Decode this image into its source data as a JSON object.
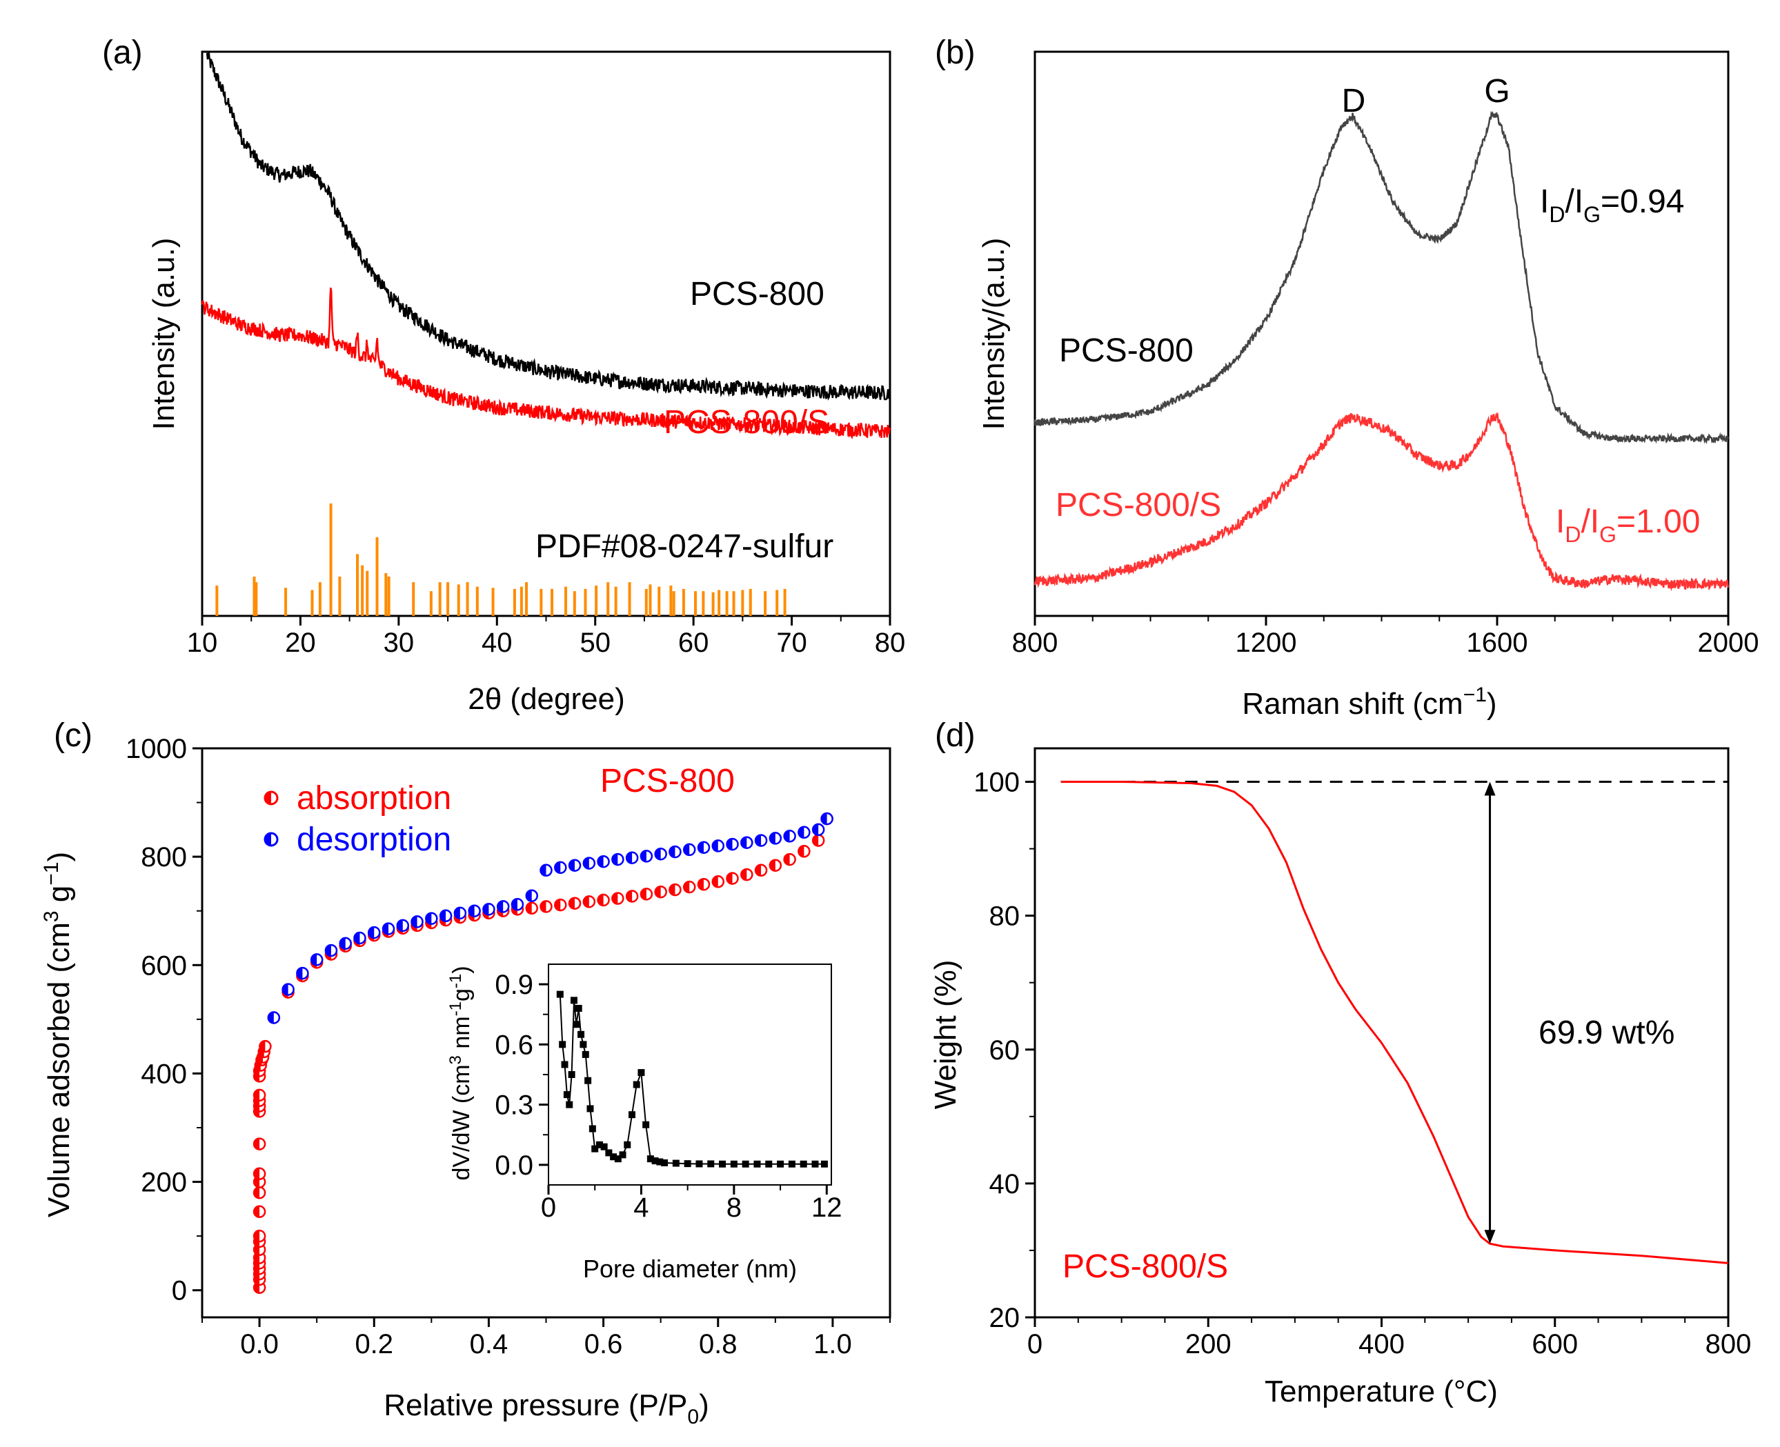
{
  "chart_data": [
    {
      "id": "a",
      "panel_label": "(a)",
      "type": "line",
      "title": "",
      "xlabel": "2θ (degree)",
      "ylabel": "Intensity (a.u.)",
      "xlim": [
        10,
        80
      ],
      "xticks": [
        "10",
        "20",
        "30",
        "40",
        "50",
        "60",
        "70",
        "80"
      ],
      "series": [
        {
          "name": "PCS-800",
          "color": "#000000",
          "x": [
            10.5,
            12,
            14,
            16,
            18,
            20,
            21,
            22,
            23,
            24,
            26,
            28,
            30,
            35,
            40,
            45,
            50,
            55,
            60,
            65,
            70,
            75,
            80
          ],
          "y": [
            1.0,
            0.93,
            0.83,
            0.77,
            0.75,
            0.76,
            0.76,
            0.74,
            0.71,
            0.66,
            0.59,
            0.53,
            0.48,
            0.41,
            0.37,
            0.345,
            0.33,
            0.32,
            0.315,
            0.31,
            0.305,
            0.302,
            0.3
          ]
        },
        {
          "name": "PCS-800/S",
          "color": "#ff0000",
          "x": [
            10,
            12,
            14,
            16,
            18,
            20,
            22,
            24,
            26,
            28,
            30,
            35,
            40,
            45,
            50,
            55,
            60,
            65,
            70,
            75,
            80
          ],
          "y": [
            0.48,
            0.46,
            0.44,
            0.43,
            0.42,
            0.42,
            0.41,
            0.4,
            0.38,
            0.36,
            0.33,
            0.29,
            0.27,
            0.26,
            0.25,
            0.245,
            0.24,
            0.235,
            0.23,
            0.225,
            0.22
          ]
        }
      ],
      "reference": {
        "name": "PDF#08-0247-sulfur",
        "color": "#ff8c00",
        "x": [
          11.5,
          15.3,
          15.5,
          18.5,
          21.2,
          22.0,
          23.1,
          24.0,
          25.8,
          26.3,
          26.8,
          27.8,
          28.7,
          29.0,
          31.5,
          33.3,
          34.2,
          35.0,
          36.1,
          37.0,
          38.0,
          39.6,
          41.8,
          42.5,
          43.0,
          44.5,
          45.6,
          47.0,
          47.9,
          49.0,
          50.1,
          51.3,
          52.1,
          53.5,
          55.2,
          55.6,
          56.5,
          57.7,
          58.0,
          59.0,
          60.2,
          61.0,
          62.0,
          62.6,
          63.4,
          64.1,
          65.0,
          65.8,
          67.3,
          68.5,
          69.3
        ],
        "h": [
          0.27,
          0.35,
          0.3,
          0.25,
          0.23,
          0.3,
          1.0,
          0.35,
          0.55,
          0.45,
          0.4,
          0.7,
          0.38,
          0.35,
          0.3,
          0.22,
          0.3,
          0.3,
          0.28,
          0.3,
          0.26,
          0.25,
          0.24,
          0.26,
          0.3,
          0.24,
          0.24,
          0.26,
          0.22,
          0.24,
          0.27,
          0.3,
          0.26,
          0.3,
          0.24,
          0.28,
          0.26,
          0.27,
          0.22,
          0.24,
          0.22,
          0.22,
          0.21,
          0.23,
          0.22,
          0.22,
          0.23,
          0.24,
          0.22,
          0.23,
          0.24
        ]
      },
      "annotations": [
        "PCS-800",
        "PCS-800/S",
        "PDF#08-0247-sulfur"
      ]
    },
    {
      "id": "b",
      "panel_label": "(b)",
      "type": "line",
      "title": "",
      "xlabel": "Raman shift (cm",
      "xlabel_sup": "−1",
      "xlabel_end": ")",
      "ylabel": "Intensity/(a.u.)",
      "xlim": [
        800,
        2000
      ],
      "xticks": [
        "800",
        "1200",
        "1600",
        "2000"
      ],
      "series": [
        {
          "name": "PCS-800",
          "color": "#444444",
          "x": [
            800,
            900,
            1000,
            1100,
            1150,
            1200,
            1250,
            1300,
            1330,
            1350,
            1380,
            1420,
            1460,
            1500,
            1530,
            1560,
            1590,
            1600,
            1620,
            1640,
            1670,
            1700,
            1750,
            1800,
            1900,
            2000
          ],
          "y": [
            0.33,
            0.335,
            0.35,
            0.4,
            0.45,
            0.52,
            0.63,
            0.8,
            0.88,
            0.9,
            0.84,
            0.74,
            0.68,
            0.67,
            0.7,
            0.8,
            0.9,
            0.9,
            0.84,
            0.68,
            0.46,
            0.36,
            0.31,
            0.3,
            0.3,
            0.3
          ]
        },
        {
          "name": "PCS-800/S",
          "color": "#ff3333",
          "x": [
            800,
            900,
            1000,
            1100,
            1150,
            1200,
            1250,
            1300,
            1330,
            1350,
            1380,
            1420,
            1460,
            1500,
            1530,
            1560,
            1590,
            1600,
            1620,
            1650,
            1680,
            1700,
            1750,
            1800,
            1900,
            2000
          ],
          "y": [
            0.035,
            0.04,
            0.07,
            0.11,
            0.14,
            0.18,
            0.23,
            0.29,
            0.33,
            0.34,
            0.33,
            0.31,
            0.27,
            0.25,
            0.25,
            0.28,
            0.34,
            0.34,
            0.29,
            0.16,
            0.07,
            0.04,
            0.03,
            0.04,
            0.03,
            0.03
          ]
        }
      ],
      "annotations": {
        "peak_d": "D",
        "peak_g": "G",
        "ratio_1": {
          "main": "I",
          "sub1": "D",
          "mid": "/I",
          "sub2": "G",
          "value": "=0.94"
        },
        "ratio_2": {
          "main": "I",
          "sub1": "D",
          "mid": "/I",
          "sub2": "G",
          "value": "=1.00"
        },
        "label_1": "PCS-800",
        "label_2": "PCS-800/S"
      }
    },
    {
      "id": "c",
      "panel_label": "(c)",
      "type": "scatter",
      "title": "PCS-800",
      "xlabel": "Relative pressure (P/P",
      "xlabel_sub": "0",
      "xlabel_end": ")",
      "ylabel": "Volume adsorbed (cm",
      "ylabel_sup1": "3",
      "ylabel_mid": " g",
      "ylabel_sup2": "−1",
      "ylabel_end": ")",
      "xlim": [
        -0.1,
        1.1
      ],
      "ylim": [
        -50,
        1000
      ],
      "xticks": [
        "0.0",
        "0.2",
        "0.4",
        "0.6",
        "0.8",
        "1.0"
      ],
      "yticks": [
        "0",
        "200",
        "400",
        "600",
        "800",
        "1000"
      ],
      "series": [
        {
          "name": "absorption",
          "color": "#ff0000",
          "x": [
            0.0,
            0.0,
            0.0,
            0.0,
            0.0,
            0.0,
            0.0,
            0.0,
            0.0,
            0.0,
            0.0,
            0.0,
            0.0,
            0.0,
            0.0,
            0.0,
            0.0,
            0.0,
            0.0,
            0.0,
            0.002,
            0.004,
            0.006,
            0.008,
            0.01,
            0.025,
            0.05,
            0.075,
            0.1,
            0.125,
            0.15,
            0.175,
            0.2,
            0.225,
            0.25,
            0.275,
            0.3,
            0.325,
            0.35,
            0.375,
            0.4,
            0.425,
            0.45,
            0.475,
            0.5,
            0.525,
            0.55,
            0.575,
            0.6,
            0.625,
            0.65,
            0.675,
            0.7,
            0.725,
            0.75,
            0.775,
            0.8,
            0.825,
            0.85,
            0.875,
            0.9,
            0.925,
            0.95,
            0.975,
            0.99
          ],
          "y": [
            5,
            20,
            30,
            40,
            50,
            60,
            75,
            90,
            100,
            145,
            180,
            200,
            215,
            270,
            330,
            340,
            350,
            360,
            395,
            405,
            415,
            425,
            430,
            440,
            450,
            503,
            550,
            580,
            605,
            620,
            635,
            645,
            655,
            662,
            668,
            673,
            678,
            683,
            688,
            692,
            696,
            700,
            703,
            705,
            708,
            711,
            714,
            717,
            720,
            723,
            727,
            731,
            735,
            739,
            744,
            749,
            754,
            760,
            767,
            775,
            784,
            795,
            810,
            830,
            870
          ]
        },
        {
          "name": "desorption",
          "color": "#0000ff",
          "x": [
            0.025,
            0.05,
            0.075,
            0.1,
            0.125,
            0.15,
            0.175,
            0.2,
            0.225,
            0.25,
            0.275,
            0.3,
            0.325,
            0.35,
            0.375,
            0.4,
            0.425,
            0.45,
            0.475,
            0.5,
            0.525,
            0.55,
            0.575,
            0.6,
            0.625,
            0.65,
            0.675,
            0.7,
            0.725,
            0.75,
            0.775,
            0.8,
            0.825,
            0.85,
            0.875,
            0.9,
            0.925,
            0.95,
            0.975,
            0.99
          ],
          "y": [
            503,
            555,
            585,
            610,
            627,
            640,
            650,
            660,
            667,
            673,
            680,
            686,
            691,
            696,
            700,
            703,
            708,
            712,
            728,
            775,
            780,
            784,
            788,
            791,
            795,
            798,
            801,
            805,
            809,
            813,
            817,
            820,
            823,
            826,
            830,
            834,
            838,
            845,
            850,
            870
          ]
        }
      ],
      "inset": {
        "type": "line",
        "xlabel": "Pore diameter (nm)",
        "ylabel": "dV/dW (cm",
        "ylabel_sup1": "3",
        "ylabel_mid": " nm",
        "ylabel_sup2": "-1",
        "ylabel_mid2": "g",
        "ylabel_sup3": "-1",
        "ylabel_end": ")",
        "xlim": [
          0,
          12.2
        ],
        "ylim": [
          -0.1,
          1.0
        ],
        "xticks": [
          "0",
          "4",
          "8",
          "12"
        ],
        "yticks": [
          "0.0",
          "0.3",
          "0.6",
          "0.9"
        ],
        "x": [
          0.5,
          0.6,
          0.7,
          0.8,
          0.9,
          1.0,
          1.1,
          1.2,
          1.3,
          1.4,
          1.5,
          1.6,
          1.7,
          1.8,
          1.9,
          2.0,
          2.2,
          2.4,
          2.6,
          2.8,
          3.0,
          3.2,
          3.4,
          3.6,
          3.8,
          4.0,
          4.2,
          4.4,
          4.6,
          4.8,
          5.0,
          5.5,
          6.0,
          6.5,
          7.0,
          7.5,
          8.0,
          8.5,
          9.0,
          9.5,
          10.0,
          10.5,
          11.0,
          11.5,
          11.9
        ],
        "y": [
          0.85,
          0.6,
          0.5,
          0.35,
          0.3,
          0.45,
          0.82,
          0.7,
          0.78,
          0.65,
          0.6,
          0.55,
          0.42,
          0.28,
          0.18,
          0.08,
          0.1,
          0.09,
          0.06,
          0.04,
          0.03,
          0.05,
          0.1,
          0.25,
          0.4,
          0.46,
          0.2,
          0.03,
          0.02,
          0.015,
          0.01,
          0.008,
          0.006,
          0.005,
          0.005,
          0.004,
          0.004,
          0.004,
          0.004,
          0.004,
          0.004,
          0.004,
          0.004,
          0.004,
          0.004
        ]
      },
      "legend": "top-left"
    },
    {
      "id": "d",
      "panel_label": "(d)",
      "type": "line",
      "title": "",
      "xlabel": "Temperature (°C)",
      "ylabel": "Weight (%)",
      "xlim": [
        0,
        800
      ],
      "ylim": [
        20,
        105
      ],
      "xticks": [
        "0",
        "200",
        "400",
        "600",
        "800"
      ],
      "yticks": [
        "20",
        "40",
        "60",
        "80",
        "100"
      ],
      "series": [
        {
          "name": "PCS-800/S",
          "color": "#ff0000",
          "x": [
            30,
            100,
            180,
            210,
            230,
            250,
            270,
            290,
            310,
            330,
            350,
            370,
            400,
            430,
            460,
            480,
            500,
            515,
            525,
            540,
            600,
            700,
            800
          ],
          "y": [
            100,
            100,
            99.8,
            99.4,
            98.5,
            96.5,
            93,
            88,
            81,
            75,
            70,
            66,
            61,
            55,
            47,
            41,
            35,
            32,
            31,
            30.6,
            30,
            29.2,
            28.1
          ]
        }
      ],
      "reference_line": {
        "y": 100,
        "style": "dashed"
      },
      "arrow": {
        "x": 525,
        "from": 100,
        "to": 31
      },
      "annotations": [
        "69.9 wt%",
        "PCS-800/S"
      ]
    }
  ]
}
